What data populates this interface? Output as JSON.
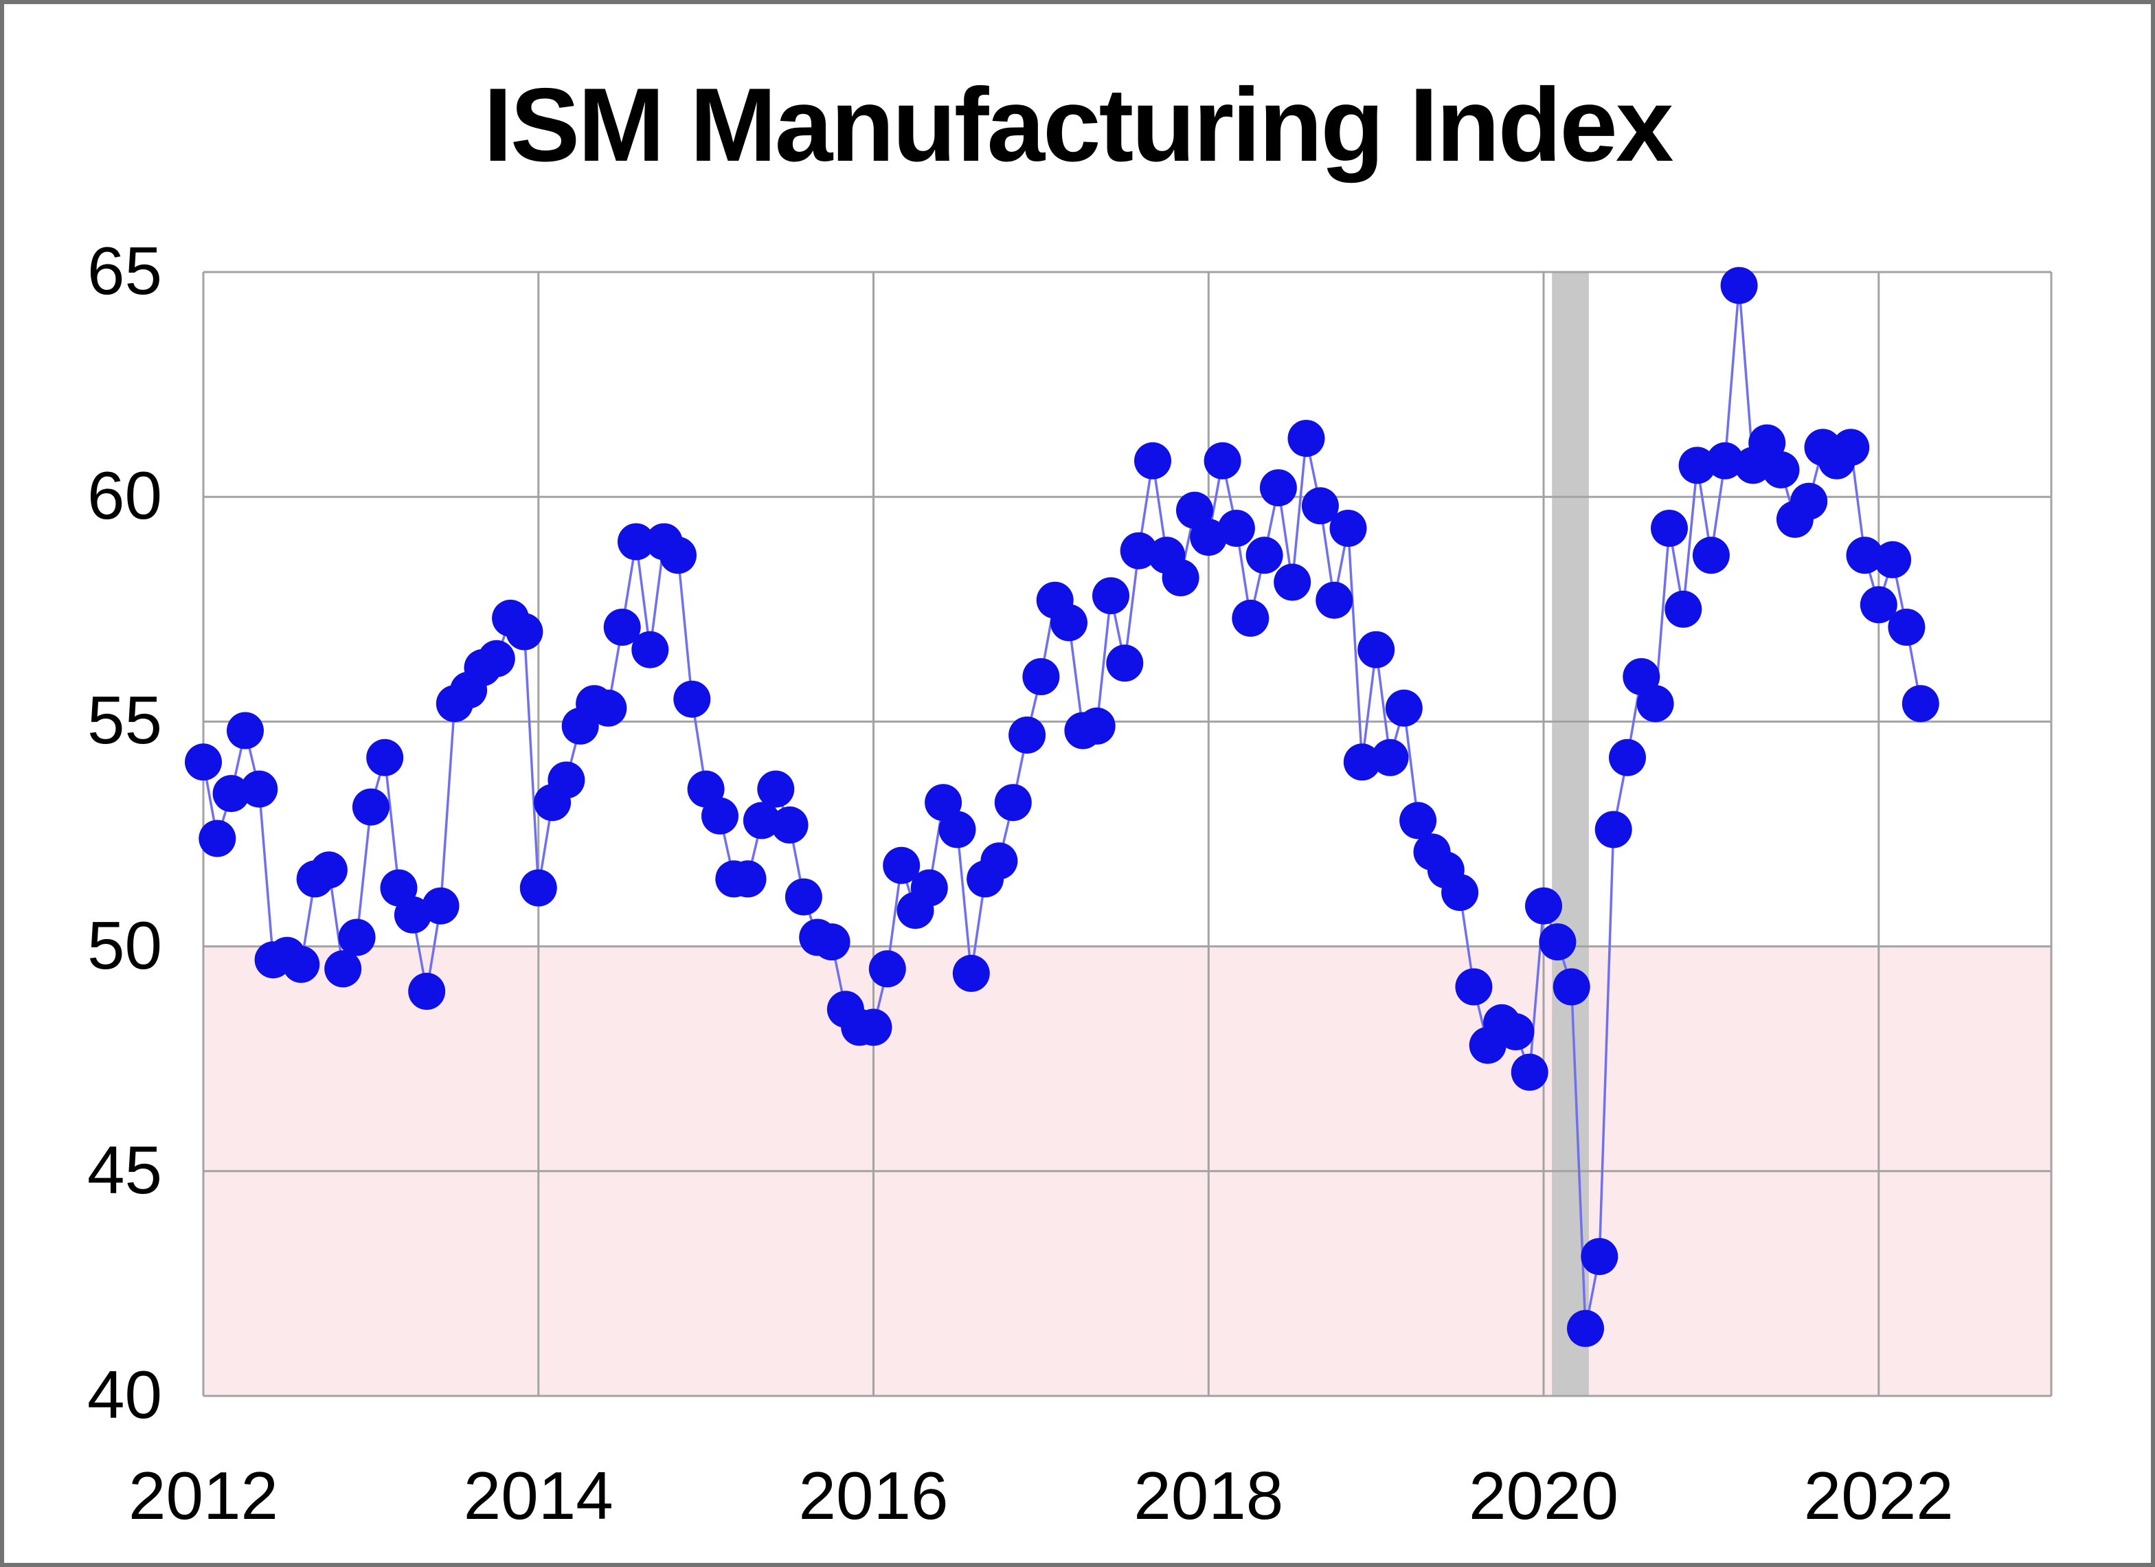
{
  "title": "ISM Manufacturing Index",
  "colors": {
    "point": "#0f0fe8",
    "line": "#7070ee",
    "below_threshold_fill": "#fbe9ec",
    "recession_band": "#c8c8c8",
    "grid": "#a3a3a3",
    "text": "#000000",
    "background": "#ffffff",
    "border": "#737373"
  },
  "chart_data": {
    "type": "line",
    "title": "ISM Manufacturing Index",
    "series_name": "ISM Manufacturing Index (monthly)",
    "frequency": "monthly",
    "start_year": 2012,
    "start_month": 1,
    "values": [
      54.1,
      52.4,
      53.4,
      54.8,
      53.5,
      49.7,
      49.8,
      49.6,
      51.5,
      51.7,
      49.5,
      50.2,
      53.1,
      54.2,
      51.3,
      50.7,
      49.0,
      50.9,
      55.4,
      55.7,
      56.2,
      56.4,
      57.3,
      57.0,
      51.3,
      53.2,
      53.7,
      54.9,
      55.4,
      55.3,
      57.1,
      59.0,
      56.6,
      59.0,
      58.7,
      55.5,
      53.5,
      52.9,
      51.5,
      51.5,
      52.8,
      53.5,
      52.7,
      51.1,
      50.2,
      50.1,
      48.6,
      48.2,
      48.2,
      49.5,
      51.8,
      50.8,
      51.3,
      53.2,
      52.6,
      49.4,
      51.5,
      51.9,
      53.2,
      54.7,
      56.0,
      57.7,
      57.2,
      54.8,
      54.9,
      57.8,
      56.3,
      58.8,
      60.8,
      58.7,
      58.2,
      59.7,
      59.1,
      60.8,
      59.3,
      57.3,
      58.7,
      60.2,
      58.1,
      61.3,
      59.8,
      57.7,
      59.3,
      54.1,
      56.6,
      54.2,
      55.3,
      52.8,
      52.1,
      51.7,
      51.2,
      49.1,
      47.8,
      48.3,
      48.1,
      47.2,
      50.9,
      50.1,
      49.1,
      41.5,
      43.1,
      52.6,
      54.2,
      56.0,
      55.4,
      59.3,
      57.5,
      60.7,
      58.7,
      60.8,
      64.7,
      60.7,
      61.2,
      60.6,
      59.5,
      59.9,
      61.1,
      60.8,
      61.1,
      58.7,
      57.6,
      58.6,
      57.1,
      55.4
    ],
    "xlim": [
      2012,
      2023.03
    ],
    "ylim": [
      40,
      65
    ],
    "x_ticks": [
      2012,
      2014,
      2016,
      2018,
      2020,
      2022
    ],
    "x_tick_labels": [
      "2012",
      "2014",
      "2016",
      "2018",
      "2020",
      "2022"
    ],
    "y_ticks": [
      40,
      45,
      50,
      55,
      60,
      65
    ],
    "y_tick_labels": [
      "40",
      "45",
      "50",
      "55",
      "60",
      "65"
    ],
    "threshold": 50,
    "threshold_meaning": "values below 50 shaded pink",
    "recession_band": {
      "from": 2020.05,
      "to": 2020.27
    },
    "grid": true,
    "legend": "none",
    "xlabel": "",
    "ylabel": ""
  }
}
